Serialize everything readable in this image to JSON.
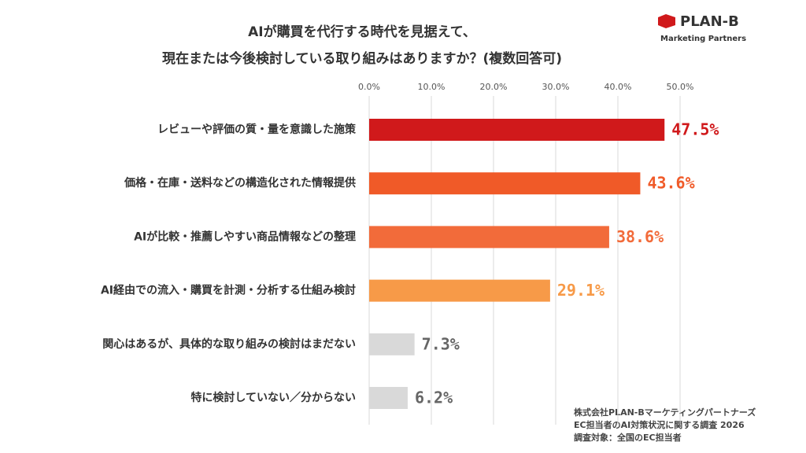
{
  "logo": {
    "name": "PLAN-B",
    "tagline": "Marketing Partners"
  },
  "chart_data": {
    "type": "bar",
    "orientation": "horizontal",
    "title": [
      "AIが購買を代行する時代を見据えて、",
      "現在または今後検討している取り組みはありますか？(複数回答可)"
    ],
    "categories": [
      "レビューや評価の質・量を意識した施策",
      "価格・在庫・送料などの構造化された情報提供",
      "AIが比較・推薦しやすい商品情報などの整理",
      "AI経由での流入・購買を計測・分析する仕組み検討",
      "関心はあるが、具体的な取り組みの検討はまだない",
      "特に検討していない／分からない"
    ],
    "values": [
      47.5,
      43.6,
      38.6,
      29.1,
      7.3,
      6.2
    ],
    "value_labels": [
      "47.5%",
      "43.6%",
      "38.6%",
      "29.1%",
      "7.3%",
      "6.2%"
    ],
    "colors": [
      "#d0191b",
      "#f05a28",
      "#f26b3a",
      "#f79a48",
      "#d9d9d9",
      "#d9d9d9"
    ],
    "label_colors": [
      "#d0191b",
      "#f05a28",
      "#f26b3a",
      "#f79a48",
      "#666666",
      "#666666"
    ],
    "xlim": [
      0,
      50
    ],
    "xticks": [
      {
        "value": 0,
        "label": "0.0%"
      },
      {
        "value": 10,
        "label": "10.0%"
      },
      {
        "value": 20,
        "label": "20.0%"
      },
      {
        "value": 30,
        "label": "30.0%"
      },
      {
        "value": 40,
        "label": "40.0%"
      },
      {
        "value": 50,
        "label": "50.0%"
      }
    ],
    "grid": true,
    "notes": [
      "株式会社PLAN-Bマーケティングパートナーズ",
      "EC担当者のAI対策状況に関する調査 2026",
      "調査対象：全国のEC担当者"
    ]
  }
}
